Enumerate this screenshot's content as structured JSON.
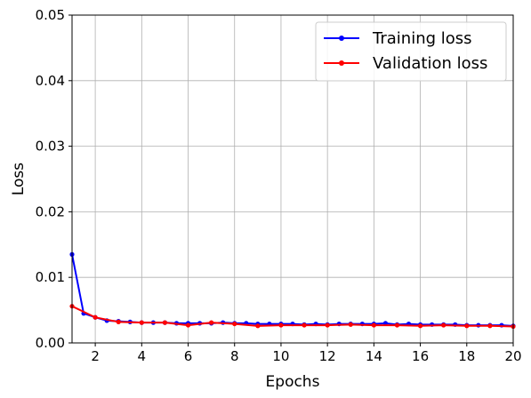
{
  "chart_data": {
    "type": "line",
    "xlabel": "Epochs",
    "ylabel": "Loss",
    "xlim": [
      1,
      20
    ],
    "ylim": [
      0,
      0.05
    ],
    "x_ticks": [
      2,
      4,
      6,
      8,
      10,
      12,
      14,
      16,
      18,
      20
    ],
    "x_tick_labels": [
      "2",
      "4",
      "6",
      "8",
      "10",
      "12",
      "14",
      "16",
      "18",
      "20"
    ],
    "y_ticks": [
      0,
      0.01,
      0.02,
      0.03,
      0.04,
      0.05
    ],
    "y_tick_labels": [
      "0.00",
      "0.01",
      "0.02",
      "0.03",
      "0.04",
      "0.05"
    ],
    "grid": true,
    "legend_position": "top-right",
    "series": [
      {
        "name": "Training loss",
        "color": "#0000ff",
        "x": [
          1,
          1.5,
          2,
          2.5,
          3,
          3.5,
          4,
          4.5,
          5,
          5.5,
          6,
          6.5,
          7,
          7.5,
          8,
          8.5,
          9,
          9.5,
          10,
          10.5,
          11,
          11.5,
          12,
          12.5,
          13,
          13.5,
          14,
          14.5,
          15,
          15.5,
          16,
          16.5,
          17,
          17.5,
          18,
          18.5,
          19,
          19.5,
          20
        ],
        "values": [
          0.0135,
          0.0045,
          0.0039,
          0.0034,
          0.0033,
          0.0032,
          0.0031,
          0.0031,
          0.0031,
          0.003,
          0.003,
          0.003,
          0.003,
          0.0031,
          0.003,
          0.003,
          0.0029,
          0.0029,
          0.0029,
          0.0029,
          0.0028,
          0.0029,
          0.0028,
          0.0029,
          0.0029,
          0.0029,
          0.0029,
          0.003,
          0.0028,
          0.0029,
          0.0028,
          0.0028,
          0.0028,
          0.0028,
          0.0027,
          0.0027,
          0.0027,
          0.0027,
          0.0026
        ]
      },
      {
        "name": "Validation loss",
        "color": "#ff0000",
        "x": [
          1,
          2,
          3,
          4,
          5,
          6,
          7,
          8,
          9,
          10,
          11,
          12,
          13,
          14,
          15,
          16,
          17,
          18,
          19,
          20
        ],
        "values": [
          0.0056,
          0.0039,
          0.0032,
          0.0031,
          0.0031,
          0.0027,
          0.0031,
          0.0029,
          0.0026,
          0.0027,
          0.0027,
          0.0027,
          0.0028,
          0.0027,
          0.0027,
          0.0026,
          0.0027,
          0.0026,
          0.0026,
          0.0025
        ]
      }
    ]
  }
}
